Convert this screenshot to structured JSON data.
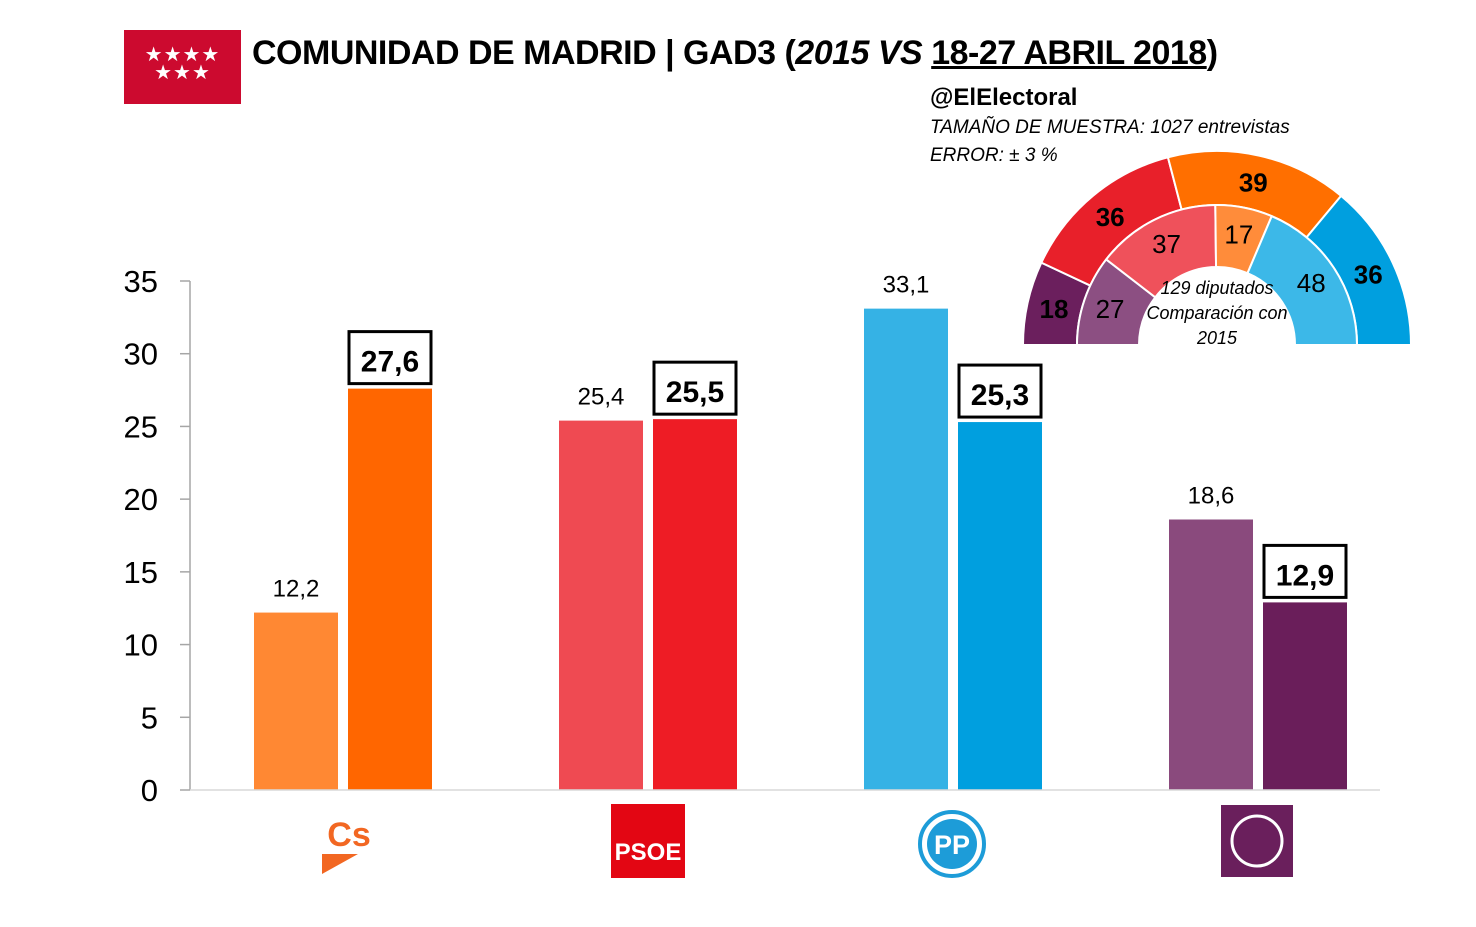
{
  "header": {
    "flag_stars": "★★★★\n★★★",
    "title_part1": "COMUNIDAD DE MADRID | GAD3 (",
    "title_part2": "2015 VS",
    "title_part3": " ",
    "title_part4": "18-27 ABRIL 2018",
    "title_part5": ")",
    "handle": "@ElElectoral",
    "sample": "TAMAÑO DE MUESTRA: 1027 entrevistas",
    "error": "ERROR: ± 3 %"
  },
  "logos": {
    "cs": {
      "text": "Cs",
      "color": "#f26722",
      "icon": "cs-logo"
    },
    "psoe": {
      "text": "PSOE",
      "color": "#e30613",
      "icon": "psoe-logo"
    },
    "pp": {
      "text": "PP",
      "color": "#1d9cd8",
      "icon": "pp-logo"
    },
    "podemos": {
      "color": "#6a1f5c",
      "icon": "podemos-circle-logo"
    }
  },
  "chart_data": [
    {
      "type": "bar",
      "categories": [
        "Cs",
        "PSOE",
        "PP",
        "Podemos"
      ],
      "series": [
        {
          "values": [
            12.2,
            25.4,
            33.1,
            18.6
          ],
          "colors": [
            "#ff8833",
            "#ef4a52",
            "#35b2e5",
            "#8a4a7d"
          ]
        },
        {
          "values": [
            27.6,
            25.5,
            25.3,
            12.9
          ],
          "colors": [
            "#ff6600",
            "#ee1c25",
            "#009fdf",
            "#6a1e5a"
          ]
        }
      ],
      "data_labels": {
        "series0": [
          "12,2",
          "25,4",
          "33,1",
          "18,6"
        ],
        "series1": [
          "27,6",
          "25,5",
          "25,3",
          "12,9"
        ]
      },
      "ylim": [
        0,
        35
      ],
      "yticks": [
        0,
        5,
        10,
        15,
        20,
        25,
        30,
        35
      ],
      "grid": false,
      "title": "",
      "xlabel": "",
      "ylabel": ""
    },
    {
      "type": "pie",
      "subtype": "semicircle-donut",
      "center_text": [
        "129 diputados",
        "Comparación con",
        "2015"
      ],
      "outer_ring": {
        "labels": [
          "18",
          "36",
          "39",
          "36"
        ],
        "values": [
          18,
          36,
          39,
          36
        ],
        "colors": [
          "#6b1f5d",
          "#e8202a",
          "#ff6f00",
          "#009fdf"
        ]
      },
      "inner_ring": {
        "labels": [
          "27",
          "37",
          "17",
          "48"
        ],
        "values": [
          27,
          37,
          17,
          48
        ],
        "colors": [
          "#8c4f82",
          "#ef515b",
          "#ff8c3a",
          "#3cb8e8"
        ]
      }
    }
  ]
}
